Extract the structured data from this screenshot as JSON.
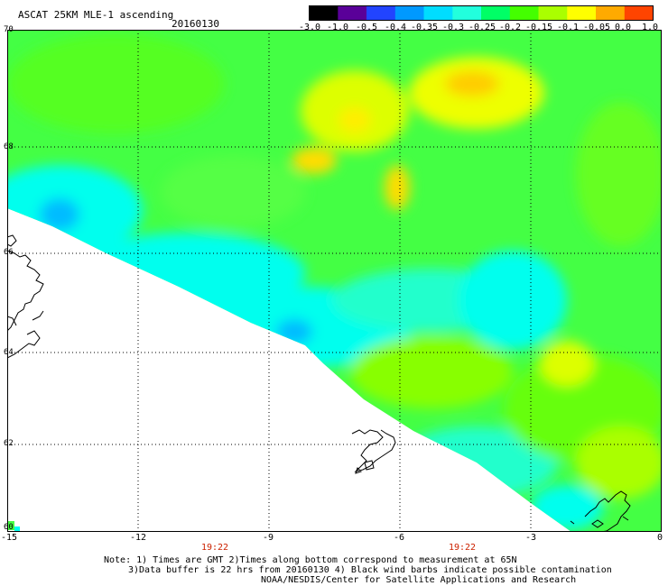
{
  "header": {
    "title": "ASCAT 25KM MLE-1 ascending",
    "date": "20160130"
  },
  "colorbar": {
    "labels": [
      "-3.0",
      "-1.0",
      "-0.5",
      "-0.4",
      "-0.35",
      "-0.3",
      "-0.25",
      "-0.2",
      "-0.15",
      "-0.1",
      "-0.05",
      "0.0",
      "1.0"
    ],
    "colors": [
      "#000000",
      "#5a0099",
      "#2244ff",
      "#0099ff",
      "#00ddff",
      "#22ffdd",
      "#00ff66",
      "#44ff00",
      "#aaff00",
      "#ffff00",
      "#ffaa00",
      "#ff4400"
    ]
  },
  "map": {
    "lon_range": [
      -15,
      0
    ],
    "lat_range": [
      60,
      70
    ],
    "x_ticks": [
      "-15",
      "-12",
      "-9",
      "-6",
      "-3",
      "0"
    ],
    "y_ticks": [
      "70",
      "68",
      "66",
      "64",
      "62",
      "60"
    ],
    "swath_colors": [
      "#00ffee",
      "#44ff88",
      "#55ff22",
      "#88ff00",
      "#bbff00",
      "#ddff00",
      "#ffff00"
    ]
  },
  "times": [
    "19:22",
    "19:22"
  ],
  "notes": [
    "Note: 1) Times are GMT 2)Times along bottom correspond to measurement at 65N",
    "3)Data buffer is 22 hrs from 20160130 4) Black wind barbs indicate possible contamination",
    "NOAA/NESDIS/Center for Satellite Applications and Research"
  ]
}
